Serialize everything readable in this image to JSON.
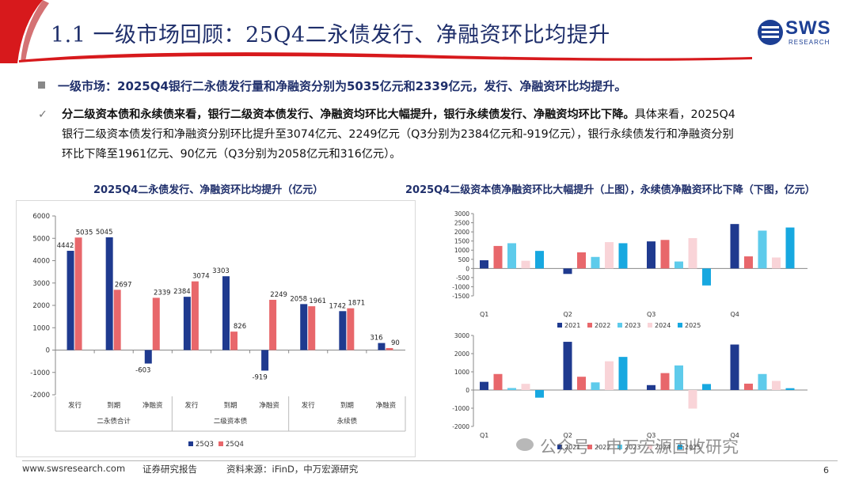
{
  "header": {
    "title": "1.1 一级市场回顾：25Q4二永债发行、净融资环比均提升",
    "logo_text": "SWS",
    "logo_sub": "RESEARCH"
  },
  "bullet": "一级市场：2025Q4银行二永债发行量和净融资分别为5035亿元和2339亿元，发行、净融资环比均提升。",
  "paragraph": {
    "check": "✓",
    "line1_bold": "分二级资本债和永续债来看，银行二级资本债发行、净融资均环比大幅提升，银行永续债发行、净融资均环比下降。",
    "line1_rest": "具体来看，2025Q4",
    "line2": "银行二级资本债发行和净融资分别环比提升至3074亿元、2249亿元（Q3分别为2384亿元和-919亿元），银行永续债发行和净融资分别",
    "line3": "环比下降至1961亿元、90亿元（Q3分别为2058亿元和316亿元）。"
  },
  "left_chart_title": "2025Q4二永债发行、净融资环比均提升（亿元）",
  "right_chart_title": "2025Q4二级资本债净融资环比大幅提升（上图），永续债净融资环比下降（下图，亿元）",
  "footer": {
    "url": "www.swsresearch.com",
    "report": "证券研究报告",
    "source": "资料来源：iFinD，中万宏源研究",
    "page": "6"
  },
  "watermark": "公众号 · 申万宏源固收研究",
  "colors": {
    "series_q3": "#1f3a8f",
    "series_q4": "#e8676b",
    "title": "#1f2f6b",
    "accent_red": "#d7191c"
  },
  "chart_data": [
    {
      "type": "bar",
      "categories": [
        "发行",
        "到期",
        "净融资",
        "发行",
        "到期",
        "净融资",
        "发行",
        "到期",
        "净融资"
      ],
      "groups": [
        {
          "label": "二永债合计",
          "span": [
            0,
            2
          ]
        },
        {
          "label": "二级资本债",
          "span": [
            3,
            5
          ]
        },
        {
          "label": "永续债",
          "span": [
            6,
            8
          ]
        }
      ],
      "series": [
        {
          "name": "25Q3",
          "color": "#1f3a8f",
          "values": [
            4442,
            5045,
            -603,
            2384,
            3303,
            -919,
            2058,
            1742,
            316
          ]
        },
        {
          "name": "25Q4",
          "color": "#e8676b",
          "values": [
            5035,
            2697,
            2339,
            3074,
            826,
            2249,
            1961,
            1871,
            90
          ]
        }
      ],
      "ylim": [
        -2000,
        6000
      ],
      "yticks": [
        -2000,
        -1000,
        0,
        1000,
        2000,
        3000,
        4000,
        5000,
        6000
      ],
      "legend": "bottom"
    },
    {
      "type": "bar",
      "categories": [
        "Q1",
        "Q2",
        "Q3",
        "Q4"
      ],
      "series": [
        {
          "name": "2021",
          "color": "#1f3a8f",
          "values": [
            450,
            -300,
            1480,
            2430
          ]
        },
        {
          "name": "2022",
          "color": "#e8676b",
          "values": [
            1230,
            880,
            1560,
            660
          ]
        },
        {
          "name": "2023",
          "color": "#5ecbeb",
          "values": [
            1380,
            630,
            380,
            2070
          ]
        },
        {
          "name": "2024",
          "color": "#f9d4d8",
          "values": [
            420,
            1440,
            1660,
            600
          ]
        },
        {
          "name": "2025",
          "color": "#17a8e0",
          "values": [
            960,
            1380,
            -930,
            2240
          ]
        }
      ],
      "ylim": [
        -1500,
        3000
      ],
      "yticks": [
        -1500,
        -1000,
        -500,
        0,
        500,
        1000,
        1500,
        2000,
        2500,
        3000
      ],
      "legend": "bottom"
    },
    {
      "type": "bar",
      "categories": [
        "Q1",
        "Q2",
        "Q3",
        "Q4"
      ],
      "series": [
        {
          "name": "2021",
          "color": "#1f3a8f",
          "values": [
            450,
            2650,
            270,
            2500
          ]
        },
        {
          "name": "2022",
          "color": "#e8676b",
          "values": [
            880,
            730,
            930,
            350
          ]
        },
        {
          "name": "2023",
          "color": "#5ecbeb",
          "values": [
            110,
            420,
            1350,
            880
          ]
        },
        {
          "name": "2024",
          "color": "#f9d4d8",
          "values": [
            340,
            1580,
            -1020,
            500
          ]
        },
        {
          "name": "2025",
          "color": "#17a8e0",
          "values": [
            -420,
            1820,
            330,
            100
          ]
        }
      ],
      "ylim": [
        -2000,
        3000
      ],
      "yticks": [
        -2000,
        -1000,
        0,
        1000,
        2000,
        3000
      ],
      "legend": "bottom"
    }
  ]
}
